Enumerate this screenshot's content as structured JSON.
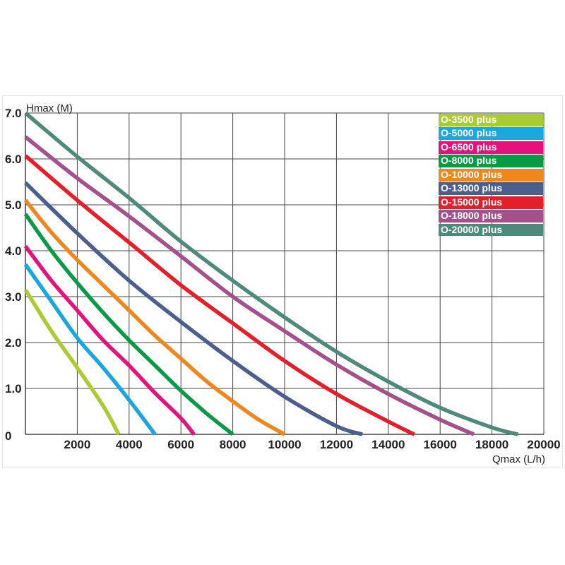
{
  "chart_data": {
    "type": "line",
    "title": "",
    "xlabel": "Qmax (L/h)",
    "ylabel": "Hmax (M)",
    "xlim": [
      0,
      20000
    ],
    "ylim": [
      0,
      7
    ],
    "x_ticks": [
      "2000",
      "4000",
      "6000",
      "8000",
      "10000",
      "12000",
      "14000",
      "16000",
      "18000",
      "20000"
    ],
    "y_ticks": [
      "0",
      "1.0",
      "2.0",
      "3.0",
      "4.0",
      "5.0",
      "6.0",
      "7.0"
    ],
    "grid": true,
    "legend_position": "top-right",
    "series": [
      {
        "name": "O-3500 plus",
        "color": "#aacb34",
        "points": [
          [
            0,
            3.15
          ],
          [
            1000,
            2.25
          ],
          [
            2000,
            1.45
          ],
          [
            3000,
            0.62
          ],
          [
            3600,
            0
          ]
        ]
      },
      {
        "name": "O-5000 plus",
        "color": "#1aa6df",
        "points": [
          [
            0,
            3.7
          ],
          [
            1000,
            2.9
          ],
          [
            2000,
            2.1
          ],
          [
            3000,
            1.45
          ],
          [
            4000,
            0.75
          ],
          [
            5000,
            0
          ]
        ]
      },
      {
        "name": "O-6500 plus",
        "color": "#e4137b",
        "points": [
          [
            0,
            4.1
          ],
          [
            1000,
            3.35
          ],
          [
            2000,
            2.7
          ],
          [
            3000,
            2.05
          ],
          [
            4000,
            1.5
          ],
          [
            5000,
            0.9
          ],
          [
            6000,
            0.35
          ],
          [
            6500,
            0
          ]
        ]
      },
      {
        "name": "O-8000 plus",
        "color": "#0a9a46",
        "points": [
          [
            0,
            4.8
          ],
          [
            1000,
            4.0
          ],
          [
            2000,
            3.3
          ],
          [
            3000,
            2.65
          ],
          [
            4000,
            2.05
          ],
          [
            5000,
            1.5
          ],
          [
            6000,
            0.95
          ],
          [
            7000,
            0.45
          ],
          [
            8000,
            0
          ]
        ]
      },
      {
        "name": "O-10000 plus",
        "color": "#f0861e",
        "points": [
          [
            0,
            5.1
          ],
          [
            1000,
            4.4
          ],
          [
            2000,
            3.8
          ],
          [
            3000,
            3.25
          ],
          [
            4000,
            2.7
          ],
          [
            5000,
            2.15
          ],
          [
            6000,
            1.65
          ],
          [
            7000,
            1.15
          ],
          [
            8000,
            0.72
          ],
          [
            9000,
            0.32
          ],
          [
            10000,
            0
          ]
        ]
      },
      {
        "name": "O-13000 plus",
        "color": "#4c5e8c",
        "points": [
          [
            0,
            5.48
          ],
          [
            2000,
            4.38
          ],
          [
            4000,
            3.35
          ],
          [
            6000,
            2.45
          ],
          [
            8000,
            1.6
          ],
          [
            10000,
            0.82
          ],
          [
            12000,
            0.18
          ],
          [
            13000,
            0
          ]
        ]
      },
      {
        "name": "O-15000 plus",
        "color": "#e41e2a",
        "points": [
          [
            0,
            6.07
          ],
          [
            2000,
            5.1
          ],
          [
            4000,
            4.18
          ],
          [
            6000,
            3.25
          ],
          [
            8000,
            2.42
          ],
          [
            10000,
            1.6
          ],
          [
            12000,
            0.88
          ],
          [
            14000,
            0.28
          ],
          [
            15000,
            0
          ]
        ]
      },
      {
        "name": "O-18000 plus",
        "color": "#a5508a",
        "points": [
          [
            0,
            6.48
          ],
          [
            2000,
            5.58
          ],
          [
            4000,
            4.75
          ],
          [
            6000,
            3.88
          ],
          [
            8000,
            3.0
          ],
          [
            10000,
            2.25
          ],
          [
            12000,
            1.52
          ],
          [
            14000,
            0.88
          ],
          [
            16000,
            0.32
          ],
          [
            17300,
            0
          ]
        ]
      },
      {
        "name": "O-20000 plus",
        "color": "#4e8a7c",
        "points": [
          [
            0,
            7.0
          ],
          [
            2000,
            6.05
          ],
          [
            4000,
            5.15
          ],
          [
            6000,
            4.2
          ],
          [
            8000,
            3.35
          ],
          [
            10000,
            2.55
          ],
          [
            12000,
            1.8
          ],
          [
            14000,
            1.15
          ],
          [
            16000,
            0.58
          ],
          [
            18000,
            0.15
          ],
          [
            19000,
            0
          ]
        ]
      }
    ]
  }
}
